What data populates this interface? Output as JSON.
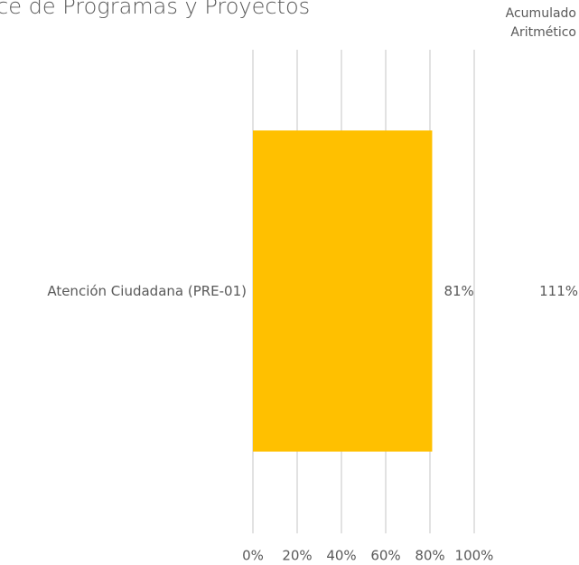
{
  "chart_data": {
    "type": "hbar",
    "title": "ce de Programas y Proyectos",
    "categories": [
      "Atención Ciudadana (PRE-01)"
    ],
    "values": [
      81
    ],
    "value_labels": [
      "81%"
    ],
    "color": "#ffc000",
    "xlim": [
      0,
      100
    ],
    "xticks": [
      {
        "value": 0,
        "label": "0%"
      },
      {
        "value": 20,
        "label": "20%"
      },
      {
        "value": 40,
        "label": "40%"
      },
      {
        "value": 60,
        "label": "60%"
      },
      {
        "value": 80,
        "label": "80%"
      },
      {
        "value": 100,
        "label": "100%"
      }
    ],
    "grid": true,
    "acumulado": {
      "header": [
        "Acumulado",
        "Aritmético"
      ],
      "values": [
        111
      ],
      "value_labels": [
        "111%"
      ]
    }
  }
}
